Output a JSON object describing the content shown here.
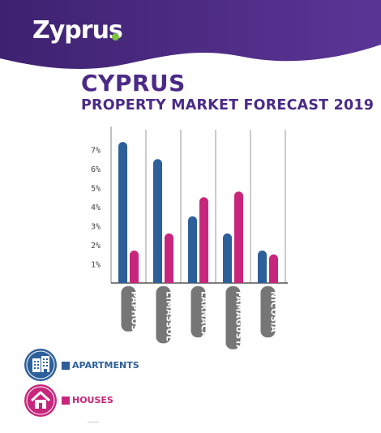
{
  "brand": {
    "name": "Zyprus",
    "colors": {
      "purple": "#4b2a87",
      "green": "#7ec242"
    }
  },
  "colors": {
    "apartments": "#2d5f9a",
    "houses": "#c8267c",
    "label_bg": "#767676"
  },
  "chart_data": {
    "type": "bar",
    "title": "CYPRUS",
    "subtitle": "PROPERTY MARKET FORECAST 2019",
    "categories": [
      "PAPHOS",
      "LIMASSOL",
      "LARNACA",
      "FAMAGUSTA",
      "NICOSIA"
    ],
    "series": [
      {
        "name": "APARTMENTS",
        "values": [
          7.4,
          6.5,
          3.5,
          2.6,
          1.7
        ]
      },
      {
        "name": "HOUSES",
        "values": [
          1.7,
          2.6,
          4.5,
          4.8,
          1.5
        ]
      }
    ],
    "yticks": [
      1,
      2,
      3,
      4,
      5,
      6,
      7
    ],
    "ytick_suffix": "%",
    "ylim": [
      0,
      7.5
    ],
    "grid": "vertical-separators",
    "legend_position": "bottom-left"
  },
  "legend": {
    "items": [
      {
        "label": "APARTMENTS",
        "icon": "building-icon"
      },
      {
        "label": "HOUSES",
        "icon": "house-icon"
      }
    ]
  }
}
